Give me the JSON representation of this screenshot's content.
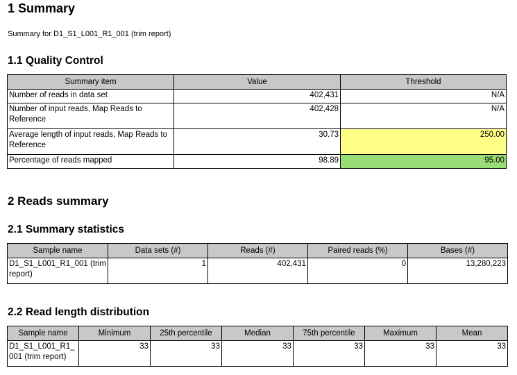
{
  "section1": {
    "title": "1 Summary",
    "subtitle": "Summary for D1_S1_L001_R1_001 (trim report)"
  },
  "qc": {
    "title": "1.1 Quality Control",
    "headers": [
      "Summary item",
      "Value",
      "Threshold"
    ],
    "rows": [
      {
        "item": "Number of reads in data set",
        "value": "402,431",
        "threshold": "N/A",
        "status": "none"
      },
      {
        "item": "Number of input reads, Map Reads to Reference",
        "value": "402,428",
        "threshold": "N/A",
        "status": "none"
      },
      {
        "item": "Average length of input reads, Map Reads to Reference",
        "value": "30.73",
        "threshold": "250.00",
        "status": "warning"
      },
      {
        "item": "Percentage of reads mapped",
        "value": "98.89",
        "threshold": "95.00",
        "status": "pass"
      }
    ],
    "colors": {
      "warning": "#ffff88",
      "pass": "#99dd77",
      "header": "#c8c8c8"
    }
  },
  "section2": {
    "title": "2 Reads summary"
  },
  "stats": {
    "title": "2.1 Summary statistics",
    "headers": [
      "Sample name",
      "Data sets (#)",
      "Reads (#)",
      "Paired reads (%)",
      "Bases (#)"
    ],
    "rows": [
      {
        "sample": "D1_S1_L001_R1_001 (trim report)",
        "datasets": "1",
        "reads": "402,431",
        "paired": "0",
        "bases": "13,280,223"
      }
    ]
  },
  "lengths": {
    "title": "2.2 Read length distribution",
    "headers": [
      "Sample name",
      "Minimum",
      "25th percentile",
      "Median",
      "75th percentile",
      "Maximum",
      "Mean"
    ],
    "rows": [
      {
        "sample": "D1_S1_L001_R1_001 (trim report)",
        "min": "33",
        "p25": "33",
        "median": "33",
        "p75": "33",
        "max": "33",
        "mean": "33"
      }
    ]
  }
}
